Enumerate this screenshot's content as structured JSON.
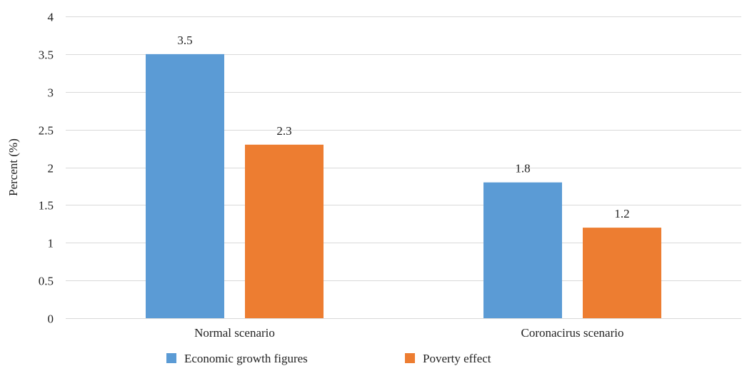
{
  "chart_data": {
    "type": "bar",
    "categories": [
      "Normal scenario",
      "Coronacirus scenario"
    ],
    "series": [
      {
        "name": "Economic growth figures",
        "values": [
          3.5,
          1.8
        ],
        "color": "#5B9BD5"
      },
      {
        "name": "Poverty effect",
        "values": [
          2.3,
          1.2
        ],
        "color": "#ED7D31"
      }
    ],
    "data_labels": [
      [
        "3.5",
        "1.8"
      ],
      [
        "2.3",
        "1.2"
      ]
    ],
    "ylabel": "Percent (%)",
    "xlabel": "",
    "title": "",
    "ylim": [
      0,
      4
    ],
    "yticks": [
      0,
      0.5,
      1,
      1.5,
      2,
      2.5,
      3,
      3.5,
      4
    ],
    "ytick_labels": [
      "0",
      "0.5",
      "1",
      "1.5",
      "2",
      "2.5",
      "3",
      "3.5",
      "4"
    ],
    "grid": true,
    "gridline_color": "#d9d9d9",
    "legend_position": "bottom"
  }
}
